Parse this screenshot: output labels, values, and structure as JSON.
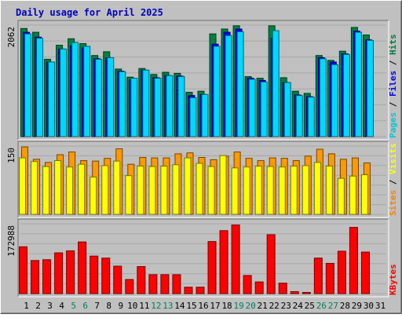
{
  "chart_data": {
    "type": "bar",
    "title": "Daily usage for April 2025",
    "categories": [
      "1",
      "2",
      "3",
      "4",
      "5",
      "6",
      "7",
      "8",
      "9",
      "10",
      "11",
      "12",
      "13",
      "14",
      "15",
      "16",
      "17",
      "18",
      "19",
      "20",
      "21",
      "22",
      "23",
      "24",
      "25",
      "26",
      "27",
      "28",
      "29",
      "30",
      "31"
    ],
    "weekend_days": [
      "5",
      "6",
      "12",
      "13",
      "19",
      "20",
      "26",
      "27"
    ],
    "panels": [
      {
        "id": "hits",
        "max_label": "2062",
        "max": 2062,
        "right_labels": [
          {
            "text": "Pages",
            "color": "#00c8d8"
          },
          {
            "text": "Files",
            "color": "#0000ff"
          },
          {
            "text": "Hits",
            "color": "#008040"
          }
        ],
        "series": [
          {
            "name": "Hits",
            "color": "#008040",
            "values": [
              2000,
              1930,
              1430,
              1690,
              1810,
              1720,
              1500,
              1570,
              1250,
              1100,
              1260,
              1150,
              1190,
              1170,
              820,
              840,
              1900,
              1990,
              2050,
              1110,
              1080,
              2050,
              1090,
              840,
              800,
              1500,
              1410,
              1580,
              2020,
              1880
            ]
          },
          {
            "name": "Files",
            "color": "#0000ff",
            "values": [
              1930,
              1840,
              1380,
              1620,
              1680,
              1640,
              1440,
              1450,
              1210,
              1050,
              1230,
              1090,
              1130,
              1120,
              760,
              780,
              1710,
              1930,
              1990,
              1080,
              1040,
              1820,
              1000,
              770,
              740,
              1460,
              1380,
              1530,
              1950,
              1790
            ]
          },
          {
            "name": "Pages",
            "color": "#00d8ff",
            "values": [
              1900,
              1820,
              1380,
              1620,
              1740,
              1670,
              1430,
              1460,
              1200,
              1080,
              1230,
              1080,
              1130,
              1110,
              720,
              780,
              1670,
              1870,
              1940,
              1060,
              1010,
              1960,
              1000,
              760,
              730,
              1440,
              1330,
              1520,
              1930,
              1780
            ]
          }
        ]
      },
      {
        "id": "visits",
        "max_label": "150",
        "max": 150,
        "right_labels": [
          {
            "text": "Sites",
            "color": "#ff8000"
          },
          {
            "text": "Visits",
            "color": "#ffff00"
          }
        ],
        "series": [
          {
            "name": "Visits",
            "color": "#ff9900",
            "values": [
              148,
              121,
              114,
              131,
              137,
              118,
              117,
              123,
              144,
              110,
              125,
              124,
              124,
              133,
              135,
              125,
              120,
              128,
              137,
              123,
              118,
              124,
              123,
              118,
              128,
              143,
              133,
              121,
              124,
              113
            ]
          },
          {
            "name": "Sites",
            "color": "#ffff00",
            "values": [
              124,
              116,
              105,
              118,
              104,
              110,
              82,
              107,
              117,
              85,
              106,
              105,
              106,
              109,
              124,
              112,
              105,
              129,
              102,
              104,
              106,
              105,
              104,
              106,
              107,
              114,
              106,
              79,
              84,
              87
            ]
          }
        ]
      },
      {
        "id": "kbytes",
        "max_label": "172988",
        "max": 172988,
        "right_labels": [
          {
            "text": "KBytes",
            "color": "#ff0000"
          }
        ],
        "series": [
          {
            "name": "KBytes",
            "color": "#ff0000",
            "values": [
              116000,
              82000,
              84000,
              101000,
              106000,
              128000,
              93000,
              88000,
              68000,
              35000,
              67000,
              47000,
              47000,
              47000,
              16000,
              16000,
              129000,
              156000,
              170000,
              45000,
              29000,
              146000,
              26000,
              5000,
              3000,
              88000,
              75000,
              105000,
              164000,
              103000
            ]
          }
        ]
      }
    ]
  }
}
